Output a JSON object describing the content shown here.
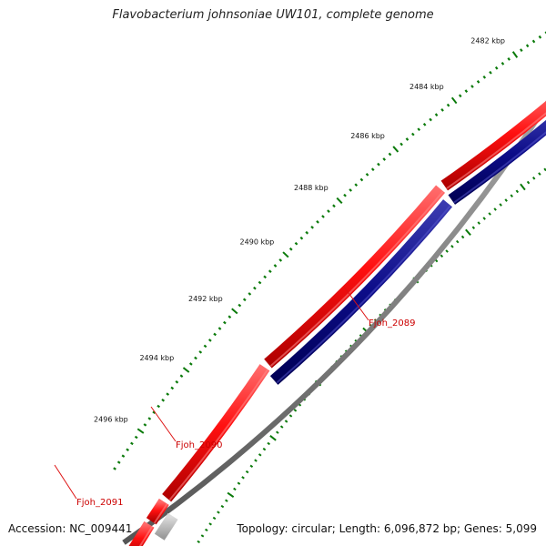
{
  "title": "Flavobacterium johnsoniae UW101, complete genome",
  "footer": {
    "accession": "Accession: NC_009441",
    "summary": "Topology: circular; Length: 6,096,872 bp; Genes: 5,099"
  },
  "ruler": {
    "unit": "kbp",
    "labels": [
      "2482 kbp",
      "2484 kbp",
      "2486 kbp",
      "2488 kbp",
      "2490 kbp",
      "2492 kbp",
      "2494 kbp",
      "2496 kbp"
    ]
  },
  "genes": [
    {
      "name": "Fjoh_2089",
      "color": "#cc0000"
    },
    {
      "name": "Fjoh_2090",
      "color": "#cc0000"
    },
    {
      "name": "Fjoh_2091",
      "color": "#cc0000"
    }
  ],
  "colors": {
    "backbone": "#7a7a7a",
    "forward_cds": "#ee1111",
    "reverse_cds": "#000080",
    "pseudo": "#bbbbbb",
    "ticks": "#0a7a0a",
    "callout": "#dd1111"
  }
}
